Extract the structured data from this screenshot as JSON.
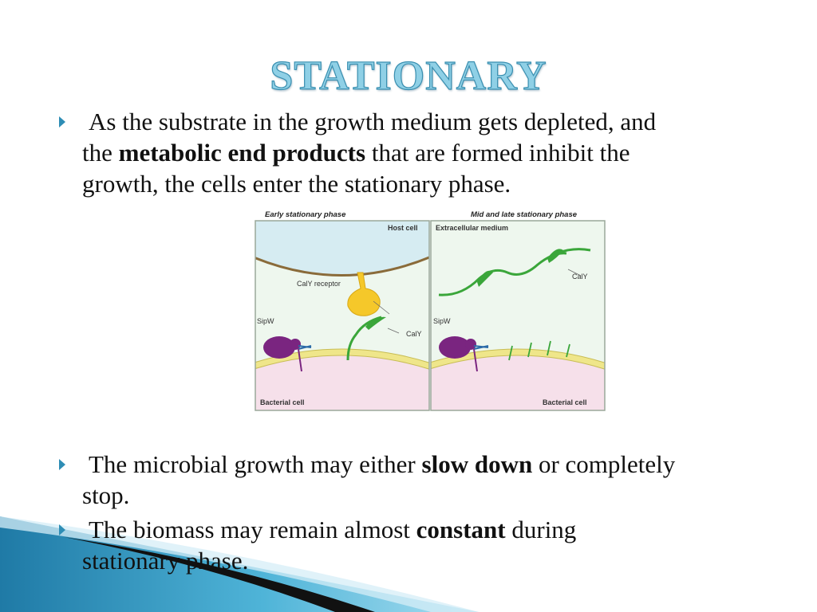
{
  "slide": {
    "title": "STATIONARY",
    "bullets": [
      {
        "pre": "As the substrate in the growth medium gets depleted, and",
        "line2_pre": "the ",
        "bold": "metabolic end products",
        "post": " that are formed inhibit the",
        "line3": "growth, the cells enter the stationary phase."
      },
      {
        "pre": "The microbial growth may either ",
        "bold": "slow down",
        "post": " or completely",
        "line2": "stop."
      },
      {
        "pre": "The biomass may remain almost ",
        "bold": "constant",
        "post": " during",
        "line2": "stationary phase."
      }
    ]
  },
  "figure": {
    "left_panel": {
      "title": "Early stationary phase",
      "host_label": "Host cell",
      "receptor_label": "CalY receptor",
      "sipw_label": "SipW",
      "caly_label": "CalY",
      "bottom_label": "Bacterial cell"
    },
    "right_panel": {
      "title": "Mid and late stationary phase",
      "medium_label": "Extracellular medium",
      "caly_label": "CalY",
      "sipw_label": "SipW",
      "bottom_label": "Bacterial cell"
    },
    "colors": {
      "background": "#eef7ee",
      "host_top": "#d6ecf2",
      "bacterial_cell": "#f6e0ea",
      "membrane": "#efe68a",
      "caly": "#3aa63a",
      "receptor": "#f5c82a",
      "sipw": "#7a2580"
    }
  }
}
